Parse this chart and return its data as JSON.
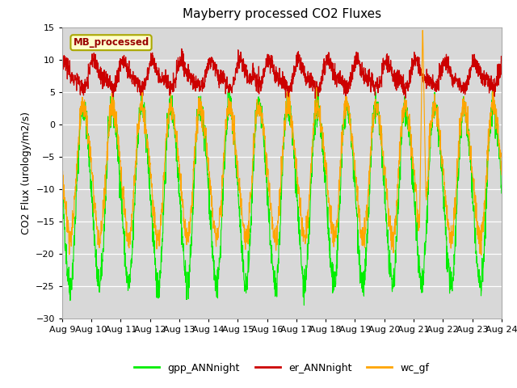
{
  "title": "Mayberry processed CO2 Fluxes",
  "ylabel": "CO2 Flux (urology/m2/s)",
  "ylim": [
    -30,
    15
  ],
  "yticks": [
    -30,
    -25,
    -20,
    -15,
    -10,
    -5,
    0,
    5,
    10,
    15
  ],
  "xstart_day": 9,
  "xend_day": 24,
  "colors": {
    "gpp": "#00ee00",
    "er": "#cc0000",
    "wc": "#ffa500"
  },
  "legend_label_box": "MB_processed",
  "legend_entries": [
    "gpp_ANNnight",
    "er_ANNnight",
    "wc_gf"
  ],
  "bg_color": "#ffffff",
  "plot_bg_color": "#d8d8d8",
  "n_points": 2000
}
